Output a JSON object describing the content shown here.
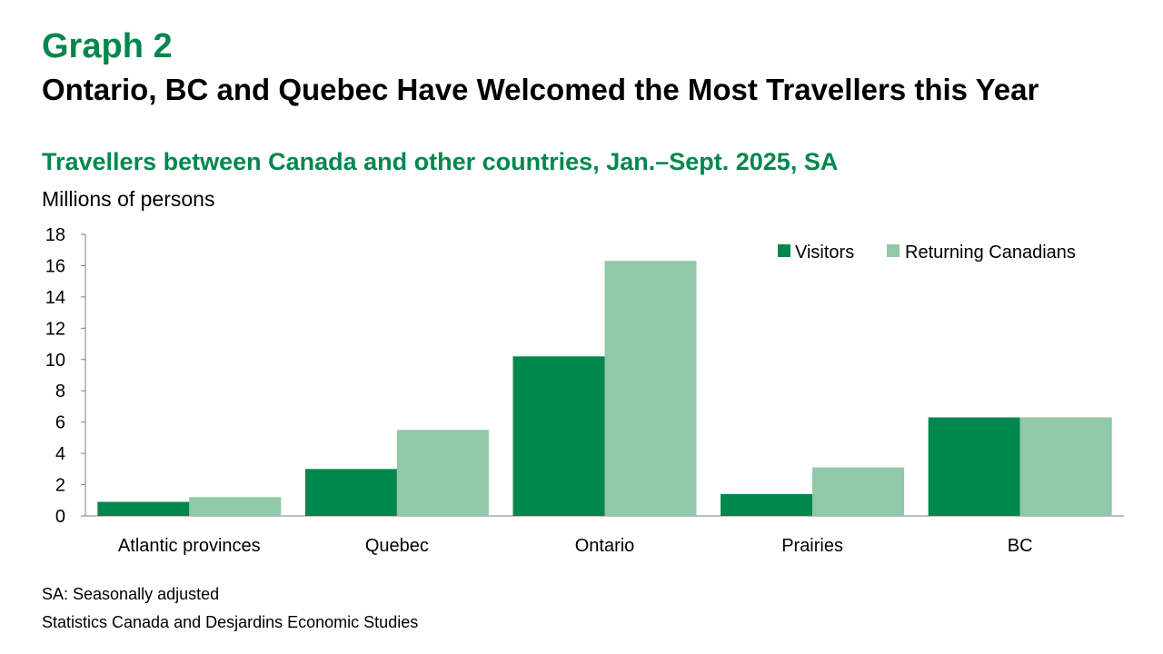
{
  "header": {
    "graph_label": "Graph 2",
    "title": "Ontario, BC and Quebec Have Welcomed the Most Travellers this Year"
  },
  "colors": {
    "visitors": "#00874E",
    "returning": "#8FC9A7",
    "accent": "#00874E"
  },
  "chart_data": {
    "type": "bar",
    "title": "Travellers between Canada and other countries, Jan.–Sept. 2025, SA",
    "ylabel": "Millions of persons",
    "xlabel": "",
    "categories": [
      "Atlantic provinces",
      "Quebec",
      "Ontario",
      "Prairies",
      "BC"
    ],
    "series": [
      {
        "name": "Visitors",
        "values": [
          0.9,
          3.0,
          10.2,
          1.4,
          6.3
        ]
      },
      {
        "name": "Returning Canadians",
        "values": [
          1.2,
          5.5,
          16.3,
          3.1,
          6.3
        ]
      }
    ],
    "ylim": [
      0,
      18
    ],
    "yticks": [
      0,
      2,
      4,
      6,
      8,
      10,
      12,
      14,
      16,
      18
    ],
    "grid": false,
    "legend": "top-right"
  },
  "footer": {
    "note": "SA: Seasonally adjusted",
    "source": "Statistics Canada and Desjardins Economic Studies"
  }
}
